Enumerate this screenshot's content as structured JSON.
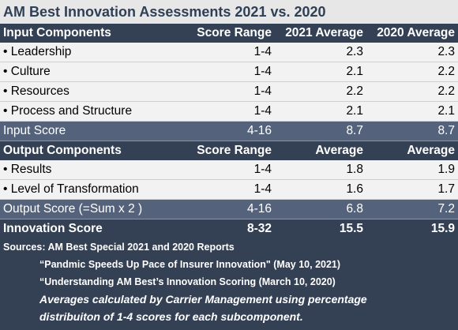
{
  "title": "AM Best Innovation Assessments 2021 vs. 2020",
  "input_header": {
    "label": "Input Components",
    "c2": "Score Range",
    "c3": "2021 Average",
    "c4": "2020 Average"
  },
  "input_rows": [
    {
      "label": "• Leadership",
      "range": "1-4",
      "avg2021": "2.3",
      "avg2020": "2.3"
    },
    {
      "label": "• Culture",
      "range": "1-4",
      "avg2021": "2.1",
      "avg2020": "2.2"
    },
    {
      "label": "• Resources",
      "range": "1-4",
      "avg2021": "2.2",
      "avg2020": "2.2"
    },
    {
      "label": "• Process and Structure",
      "range": "1-4",
      "avg2021": "2.1",
      "avg2020": "2.1"
    }
  ],
  "input_score": {
    "label": "Input Score",
    "range": "4-16",
    "avg2021": "8.7",
    "avg2020": "8.7"
  },
  "output_header": {
    "label": "Output Components",
    "c2": "Score Range",
    "c3": "Average",
    "c4": "Average"
  },
  "output_rows": [
    {
      "label": "• Results",
      "range": "1-4",
      "avg2021": "1.8",
      "avg2020": "1.9"
    },
    {
      "label": "• Level of Transformation",
      "range": "1-4",
      "avg2021": "1.6",
      "avg2020": "1.7"
    }
  ],
  "output_score": {
    "label": "Output Score (=Sum x 2 )",
    "range": "4-16",
    "avg2021": "6.8",
    "avg2020": "7.2"
  },
  "innovation_score": {
    "label": "Innovation Score",
    "range": "8-32",
    "avg2021": "15.5",
    "avg2020": "15.9"
  },
  "notes": {
    "sources": "Sources: AM Best Special 2021 and 2020 Reports",
    "report1": "“Pandmic Speeds Up Pace of Insurer Innovation\" (May 10, 2021)",
    "report2": "“Understanding AM Best’s Innovation Scoring (March 10, 2020)",
    "method1": "Averages calculated by Carrier Management using percentage",
    "method2": "distribuiton of 1-4 scores for each subcomponent."
  }
}
